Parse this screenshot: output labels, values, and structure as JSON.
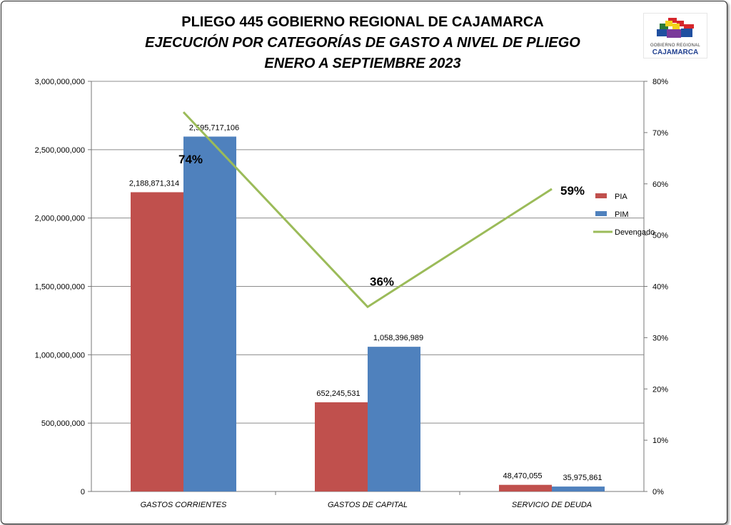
{
  "title_lines": [
    "PLIEGO 445 GOBIERNO REGIONAL DE CAJAMARCA",
    "EJECUCIÓN POR CATEGORÍAS DE GASTO A NIVEL DE PLIEGO",
    "ENERO A SEPTIEMBRE 2023"
  ],
  "logo": {
    "line1": "GOBIERNO REGIONAL",
    "line2": "CAJAMARCA"
  },
  "colors": {
    "pia": "#c0504d",
    "pim": "#4f81bd",
    "devengado": "#9bbb59",
    "grid": "#8c8c8c"
  },
  "chart_data": {
    "type": "bar",
    "categories": [
      "GASTOS CORRIENTES",
      "GASTOS DE CAPITAL",
      "SERVICIO DE DEUDA"
    ],
    "series": [
      {
        "name": "PIA",
        "type": "bar",
        "axis": "left",
        "values": [
          2188871314,
          652245531,
          48470055
        ],
        "labels": [
          "2,188,871,314",
          "652,245,531",
          "48,470,055"
        ]
      },
      {
        "name": "PIM",
        "type": "bar",
        "axis": "left",
        "values": [
          2595717106,
          1058396989,
          35975861
        ],
        "labels": [
          "2,595,717,106",
          "1,058,396,989",
          "35,975,861"
        ]
      },
      {
        "name": "Devengado",
        "type": "line",
        "axis": "right",
        "values": [
          74,
          36,
          59
        ],
        "labels": [
          "74%",
          "36%",
          "59%"
        ]
      }
    ],
    "y_left": {
      "min": 0,
      "max": 3000000000,
      "ticks": [
        "0",
        "500,000,000",
        "1,000,000,000",
        "1,500,000,000",
        "2,000,000,000",
        "2,500,000,000",
        "3,000,000,000"
      ]
    },
    "y_right": {
      "min": 0,
      "max": 80,
      "ticks": [
        "0%",
        "10%",
        "20%",
        "30%",
        "40%",
        "50%",
        "60%",
        "70%",
        "80%"
      ]
    },
    "grid": true,
    "legend_position": "right"
  }
}
